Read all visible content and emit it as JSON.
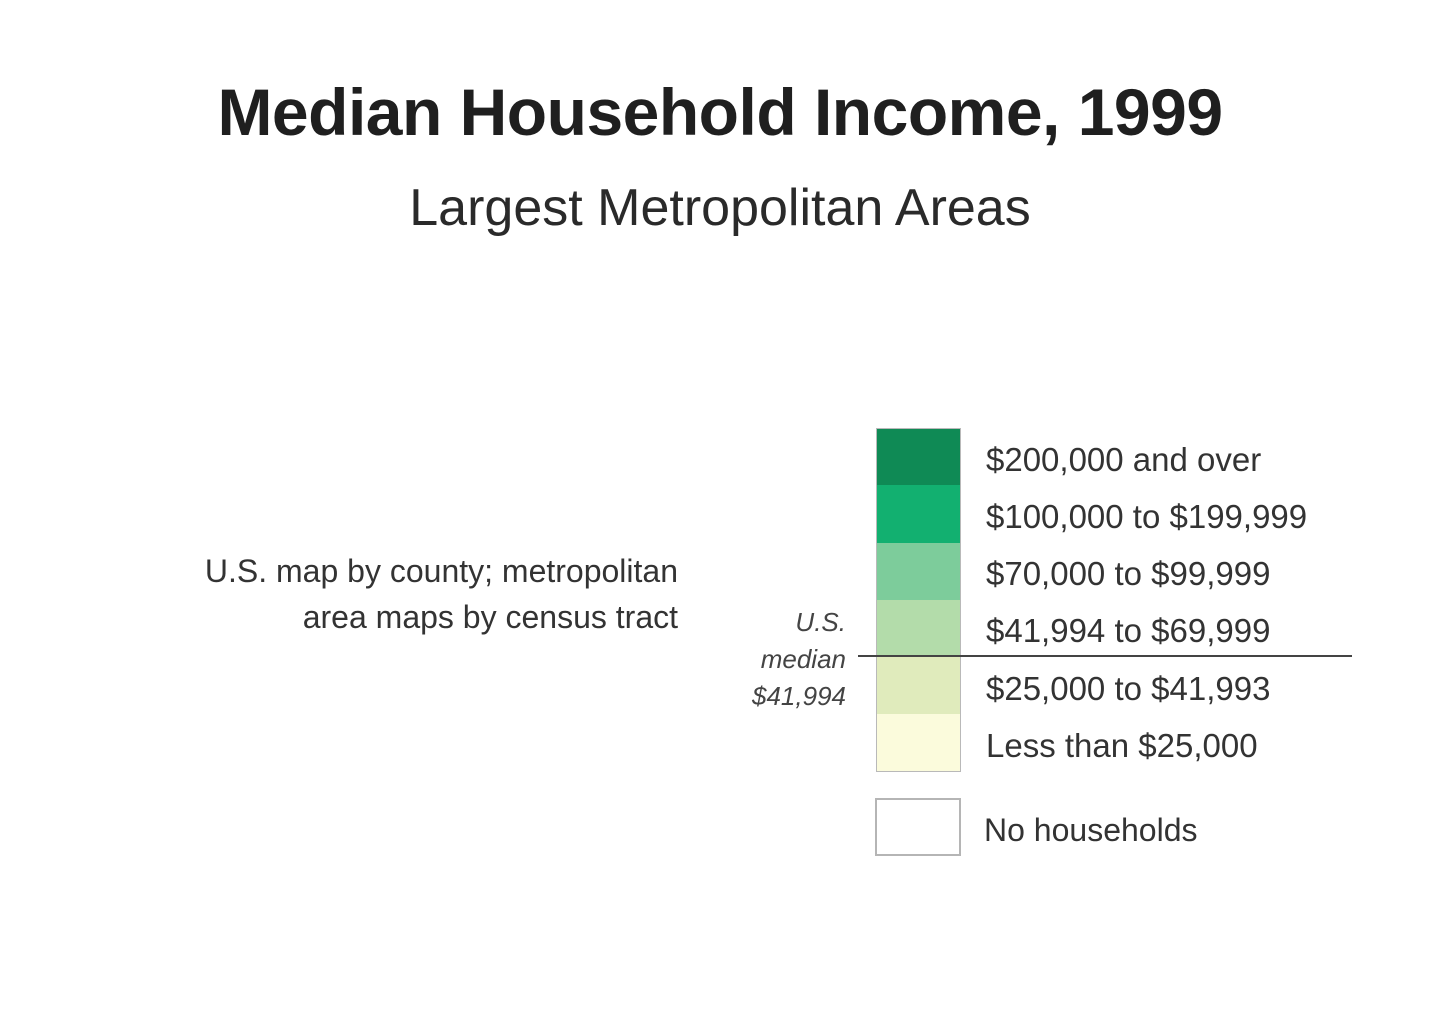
{
  "title": "Median Household Income, 1999",
  "subtitle": "Largest Metropolitan Areas",
  "note": {
    "line1": "U.S. map by county; metropolitan",
    "line2": "area maps by census tract"
  },
  "legend": {
    "classes": [
      {
        "label": "$200,000 and over",
        "color": "#0f8a55"
      },
      {
        "label": "$100,000 to $199,999",
        "color": "#12b070"
      },
      {
        "label": "$70,000 to $99,999",
        "color": "#7dcc9b"
      },
      {
        "label": "$41,994 to $69,999",
        "color": "#b3dcaa"
      },
      {
        "label": "$25,000 to $41,993",
        "color": "#e0ebbc"
      },
      {
        "label": "Less than $25,000",
        "color": "#fbfbdc"
      }
    ],
    "median": {
      "line1": "U.S.",
      "line2": "median",
      "line3": "$41,994"
    },
    "no_households": {
      "label": "No households",
      "color": "#ffffff"
    }
  }
}
